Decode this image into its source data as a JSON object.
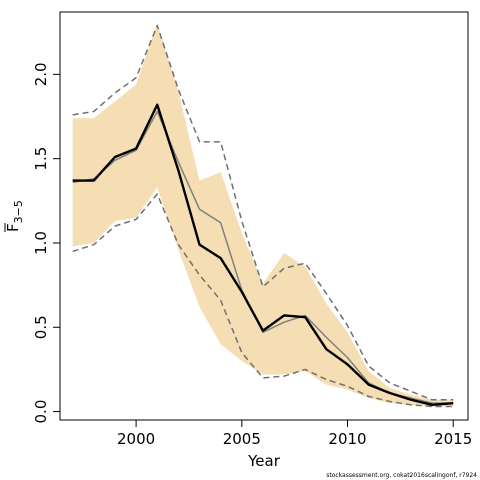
{
  "chart_data": {
    "type": "line",
    "xlabel": "Year",
    "ylabel": "F",
    "ylabel_subscript": "3−5",
    "xlim": [
      1996.4,
      2015.7
    ],
    "ylim": [
      -0.05,
      2.37
    ],
    "x_ticks": [
      2000,
      2005,
      2010,
      2015
    ],
    "y_ticks": [
      0.0,
      0.5,
      1.0,
      1.5,
      2.0
    ],
    "x_tick_labels": [
      "2000",
      "2005",
      "2010",
      "2015"
    ],
    "y_tick_labels": [
      "0.0",
      "0.5",
      "1.0",
      "1.5",
      "2.0"
    ],
    "grid": false,
    "x": [
      1997,
      1998,
      1999,
      2000,
      2001,
      2002,
      2003,
      2004,
      2005,
      2006,
      2007,
      2008,
      2009,
      2010,
      2011,
      2012,
      2013,
      2014,
      2015
    ],
    "series": [
      {
        "role": "band",
        "color": "#f5deb3",
        "lower": [
          0.98,
          1.0,
          1.13,
          1.15,
          1.33,
          0.96,
          0.62,
          0.4,
          0.3,
          0.22,
          0.22,
          0.24,
          0.16,
          0.13,
          0.08,
          0.05,
          0.04,
          0.03,
          0.03
        ],
        "upper": [
          1.74,
          1.74,
          1.84,
          1.94,
          2.3,
          1.9,
          1.37,
          1.42,
          1.06,
          0.76,
          0.94,
          0.86,
          0.64,
          0.47,
          0.24,
          0.14,
          0.1,
          0.07,
          0.07
        ]
      },
      {
        "role": "dashed-lower",
        "color": "#707070",
        "values": [
          0.95,
          0.99,
          1.1,
          1.14,
          1.29,
          0.99,
          0.81,
          0.66,
          0.35,
          0.2,
          0.21,
          0.25,
          0.19,
          0.15,
          0.09,
          0.06,
          0.04,
          0.03,
          0.03
        ]
      },
      {
        "role": "dashed-upper",
        "color": "#707070",
        "values": [
          1.76,
          1.78,
          1.89,
          1.98,
          2.29,
          1.91,
          1.6,
          1.6,
          1.13,
          0.74,
          0.85,
          0.88,
          0.7,
          0.51,
          0.27,
          0.17,
          0.12,
          0.07,
          0.07
        ]
      },
      {
        "role": "grey-line",
        "color": "#808080",
        "values": [
          1.36,
          1.38,
          1.49,
          1.55,
          1.78,
          1.48,
          1.2,
          1.12,
          0.72,
          0.47,
          0.53,
          0.57,
          0.44,
          0.32,
          0.17,
          0.11,
          0.08,
          0.05,
          0.05
        ]
      },
      {
        "role": "main-line",
        "color": "#000000",
        "values": [
          1.37,
          1.37,
          1.51,
          1.56,
          1.82,
          1.43,
          0.99,
          0.91,
          0.71,
          0.48,
          0.57,
          0.56,
          0.37,
          0.28,
          0.16,
          0.11,
          0.07,
          0.04,
          0.05
        ]
      }
    ],
    "footnote": "stockassessment.org, cokat2016scalingonf, r7924"
  }
}
